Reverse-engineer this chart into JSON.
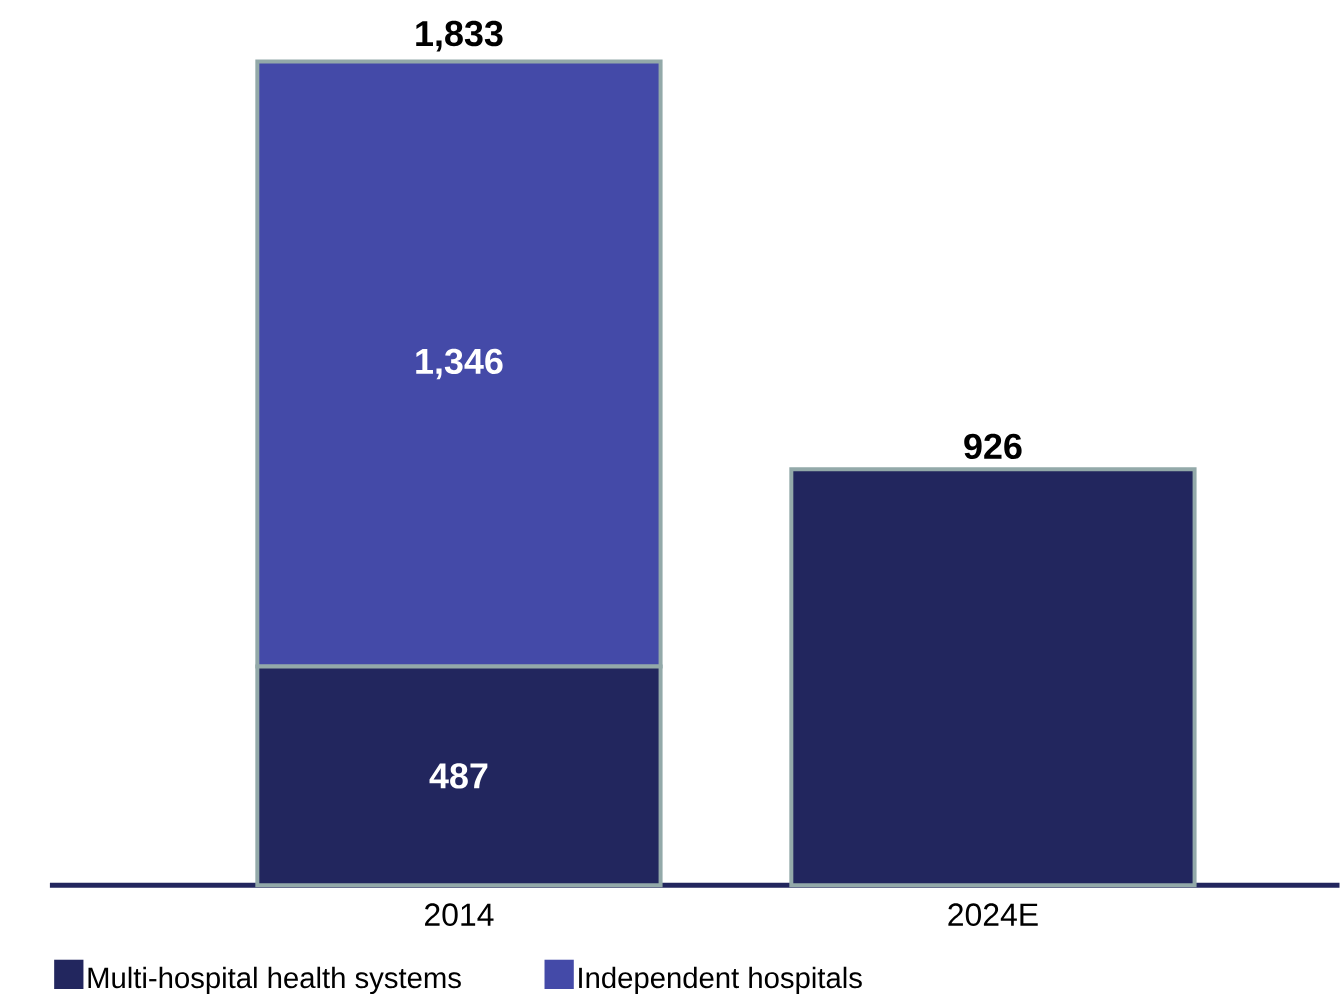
{
  "chart_data": {
    "type": "bar",
    "stacked": true,
    "categories": [
      "2014",
      "2024E"
    ],
    "series": [
      {
        "name": "Multi-hospital health systems",
        "color": "#22265e",
        "values": [
          487,
          926
        ],
        "value_labels": [
          "487",
          null
        ]
      },
      {
        "name": "Independent hospitals",
        "color": "#444aa8",
        "values": [
          1346,
          null
        ],
        "value_labels": [
          "1,346",
          null
        ]
      }
    ],
    "totals": [
      "1,833",
      "926"
    ],
    "legend": "bottom"
  }
}
